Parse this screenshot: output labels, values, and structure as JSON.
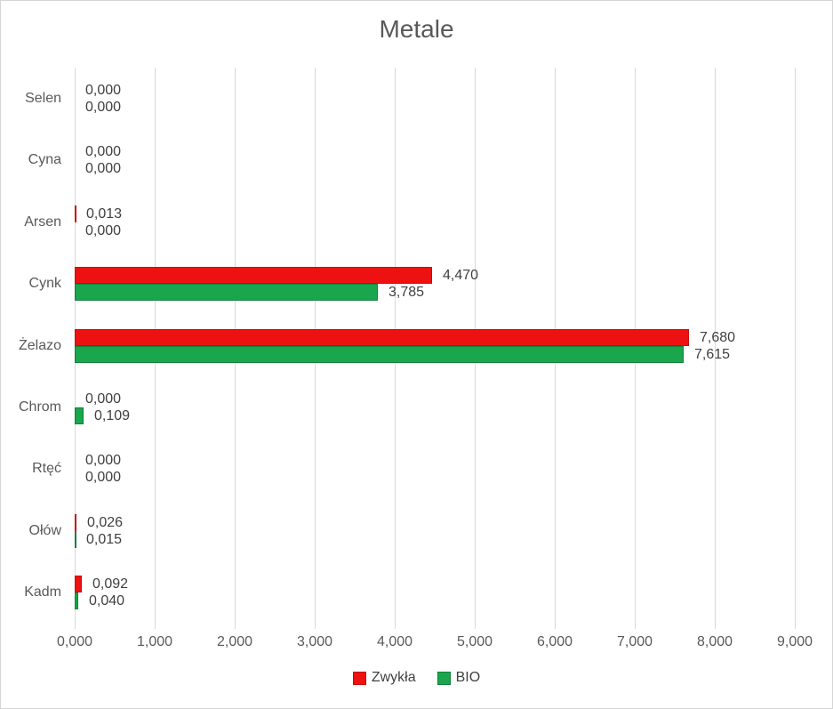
{
  "chart_data": {
    "type": "bar",
    "orientation": "horizontal",
    "title": "Metale",
    "categories": [
      "Selen",
      "Cyna",
      "Arsen",
      "Cynk",
      "Żelazo",
      "Chrom",
      "Rtęć",
      "Ołów",
      "Kadm"
    ],
    "series": [
      {
        "name": "Zwykła",
        "color": "#ee1111",
        "border_color": "#c50b0b",
        "values": [
          0.0,
          0.0,
          0.013,
          4.47,
          7.68,
          0.0,
          0.0,
          0.026,
          0.092
        ]
      },
      {
        "name": "BIO",
        "color": "#1aa64d",
        "border_color": "#12813a",
        "values": [
          0.0,
          0.0,
          0.0,
          3.785,
          7.615,
          0.109,
          0.0,
          0.015,
          0.04
        ]
      }
    ],
    "value_labels": [
      [
        "0,000",
        "0,000",
        "0,013",
        "4,470",
        "7,680",
        "0,000",
        "0,000",
        "0,026",
        "0,092"
      ],
      [
        "0,000",
        "0,000",
        "0,000",
        "3,785",
        "7,615",
        "0,109",
        "0,000",
        "0,015",
        "0,040"
      ]
    ],
    "xlim": [
      0,
      9
    ],
    "x_ticks": [
      {
        "value": 0,
        "label": "0,000"
      },
      {
        "value": 1,
        "label": "1,000"
      },
      {
        "value": 2,
        "label": "2,000"
      },
      {
        "value": 3,
        "label": "3,000"
      },
      {
        "value": 4,
        "label": "4,000"
      },
      {
        "value": 5,
        "label": "5,000"
      },
      {
        "value": 6,
        "label": "6,000"
      },
      {
        "value": 7,
        "label": "7,000"
      },
      {
        "value": 8,
        "label": "8,000"
      },
      {
        "value": 9,
        "label": "9,000"
      }
    ],
    "decimal_separator": ",",
    "grid": true,
    "legend_position": "bottom",
    "style": {
      "grid_color": "#d9d9d9",
      "title_color": "#595959",
      "axis_text_color": "#595959",
      "value_label_color": "#404040",
      "background": "#ffffff",
      "frame_border": "#d5d5d5"
    }
  }
}
